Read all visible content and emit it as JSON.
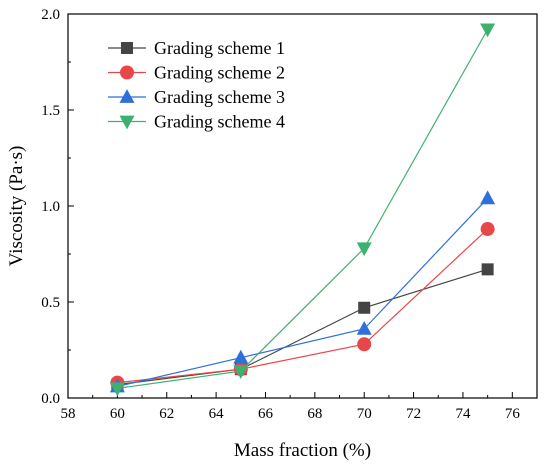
{
  "chart_data": {
    "type": "line",
    "xlabel": "Mass fraction (%)",
    "ylabel": "Viscosity (Pa·s)",
    "xlim": [
      58,
      77
    ],
    "ylim": [
      0,
      2.0
    ],
    "xticks": [
      58,
      60,
      62,
      64,
      66,
      68,
      70,
      72,
      74,
      76
    ],
    "yticks": [
      0.0,
      0.5,
      1.0,
      1.5,
      2.0
    ],
    "xtick_labels": [
      "58",
      "60",
      "62",
      "64",
      "66",
      "68",
      "70",
      "72",
      "74",
      "76"
    ],
    "ytick_labels": [
      "0.0",
      "0.5",
      "1.0",
      "1.5",
      "2.0"
    ],
    "legend_position": "top-left",
    "grid": false,
    "x": [
      60,
      65,
      70,
      75
    ],
    "series": [
      {
        "name": "Grading scheme 1",
        "values": [
          0.07,
          0.15,
          0.47,
          0.67
        ],
        "color": "#444444",
        "marker": "square"
      },
      {
        "name": "Grading scheme 2",
        "values": [
          0.08,
          0.15,
          0.28,
          0.88
        ],
        "color": "#e8474a",
        "marker": "circle"
      },
      {
        "name": "Grading scheme 3",
        "values": [
          0.06,
          0.21,
          0.36,
          1.04
        ],
        "color": "#2f6fdc",
        "marker": "triangle-up"
      },
      {
        "name": "Grading scheme 4",
        "values": [
          0.05,
          0.14,
          0.78,
          1.92
        ],
        "color": "#3db170",
        "marker": "triangle-down"
      }
    ]
  }
}
